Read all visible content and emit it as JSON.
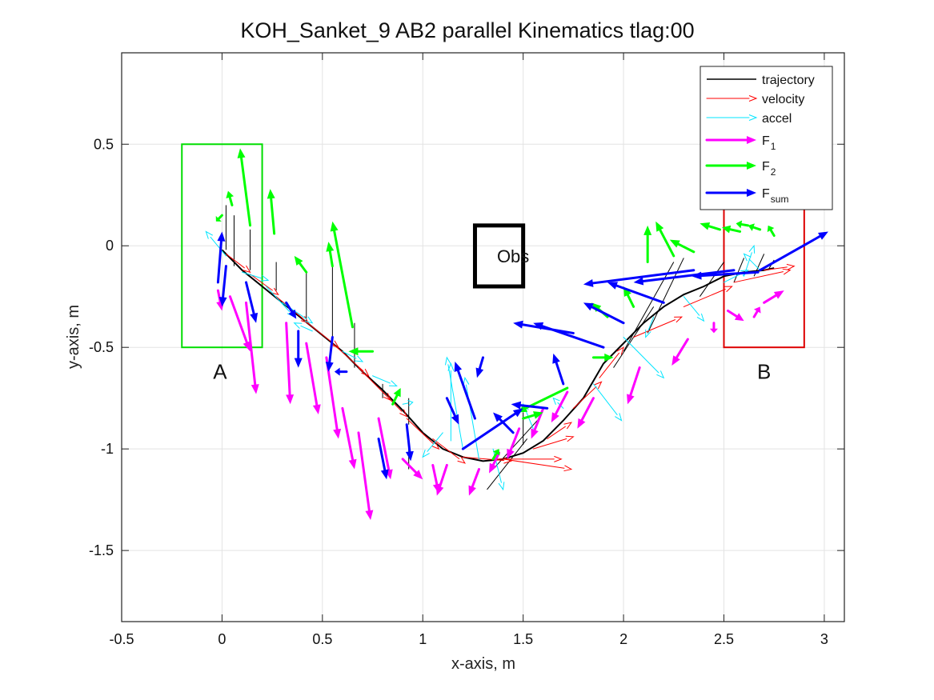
{
  "chart_data": {
    "type": "quiver",
    "title": "KOH_Sanket_9    AB2    parallel    Kinematics tlag:00",
    "xlabel": "x-axis, m",
    "ylabel": "y-axis, m",
    "xlim": [
      -0.5,
      3.1
    ],
    "ylim": [
      -1.85,
      0.95
    ],
    "xticks": [
      -0.5,
      0,
      0.5,
      1,
      1.5,
      2,
      2.5,
      3
    ],
    "xtick_labels": [
      "-0.5",
      "0",
      "0.5",
      "1",
      "1.5",
      "2",
      "2.5",
      "3"
    ],
    "yticks": [
      -1.5,
      -1,
      -0.5,
      0,
      0.5
    ],
    "ytick_labels": [
      "-1.5",
      "-1",
      "-0.5",
      "0",
      "0.5"
    ],
    "grid": true,
    "legend_position": "top-right",
    "legend": [
      {
        "key": "trajectory",
        "label": "trajectory",
        "sub": "",
        "color": "#000000"
      },
      {
        "key": "velocity",
        "label": "velocity",
        "sub": "",
        "color": "#ff0000"
      },
      {
        "key": "accel",
        "label": "accel",
        "sub": "",
        "color": "#00e5ff"
      },
      {
        "key": "f1",
        "label": "F",
        "sub": "1",
        "color": "#ff00ff"
      },
      {
        "key": "f2",
        "label": "F",
        "sub": "2",
        "color": "#00ff00"
      },
      {
        "key": "fsum",
        "label": "F",
        "sub": "sum",
        "color": "#0000ff"
      }
    ],
    "regions": [
      {
        "label": "A",
        "color": "#00dd00",
        "x": [
          -0.2,
          0.2
        ],
        "y": [
          -0.5,
          0.5
        ],
        "label_at": [
          -0.01,
          -0.62
        ]
      },
      {
        "label": "B",
        "color": "#dd0000",
        "x": [
          2.5,
          2.9
        ],
        "y": [
          -0.5,
          0.3
        ],
        "label_at": [
          2.7,
          -0.62
        ]
      }
    ],
    "obstacle": {
      "label": "Obs",
      "color": "#000000",
      "x": [
        1.26,
        1.5
      ],
      "y": [
        -0.2,
        0.1
      ],
      "label_at": [
        1.45,
        -0.05
      ]
    },
    "trajectory": [
      [
        0.0,
        -0.02
      ],
      [
        0.1,
        -0.12
      ],
      [
        0.2,
        -0.2
      ],
      [
        0.3,
        -0.28
      ],
      [
        0.4,
        -0.36
      ],
      [
        0.5,
        -0.44
      ],
      [
        0.6,
        -0.52
      ],
      [
        0.7,
        -0.62
      ],
      [
        0.8,
        -0.71
      ],
      [
        0.9,
        -0.81
      ],
      [
        1.0,
        -0.92
      ],
      [
        1.1,
        -1.0
      ],
      [
        1.2,
        -1.04
      ],
      [
        1.3,
        -1.06
      ],
      [
        1.4,
        -1.05
      ],
      [
        1.5,
        -1.02
      ],
      [
        1.6,
        -0.96
      ],
      [
        1.7,
        -0.86
      ],
      [
        1.8,
        -0.75
      ],
      [
        1.9,
        -0.58
      ],
      [
        2.0,
        -0.48
      ],
      [
        2.1,
        -0.38
      ],
      [
        2.2,
        -0.3
      ],
      [
        2.3,
        -0.24
      ],
      [
        2.4,
        -0.2
      ],
      [
        2.5,
        -0.15
      ],
      [
        2.6,
        -0.13
      ],
      [
        2.7,
        -0.12
      ],
      [
        2.75,
        -0.11
      ]
    ],
    "series": [
      {
        "name": "velocity",
        "color": "#ff0000",
        "width": 1,
        "vectors": [
          [
            0.02,
            -0.04,
            0.12,
            -0.09
          ],
          [
            0.14,
            -0.14,
            0.14,
            -0.1
          ],
          [
            0.27,
            -0.25,
            0.16,
            -0.13
          ],
          [
            0.4,
            -0.36,
            0.18,
            -0.14
          ],
          [
            0.55,
            -0.48,
            0.18,
            -0.16
          ],
          [
            0.68,
            -0.6,
            0.16,
            -0.16
          ],
          [
            0.8,
            -0.72,
            0.12,
            -0.12
          ],
          [
            0.92,
            -0.85,
            0.16,
            -0.15
          ],
          [
            1.05,
            -0.95,
            0.16,
            -0.12
          ],
          [
            1.2,
            -1.04,
            0.24,
            -0.02
          ],
          [
            1.35,
            -1.05,
            0.34,
            0.0
          ],
          [
            1.4,
            -1.05,
            0.34,
            -0.05
          ],
          [
            1.55,
            -1.0,
            0.2,
            0.06
          ],
          [
            1.62,
            -0.95,
            0.12,
            0.08
          ],
          [
            1.75,
            -0.8,
            0.14,
            0.13
          ],
          [
            1.88,
            -0.65,
            0.12,
            0.15
          ],
          [
            2.05,
            -0.45,
            0.24,
            0.1
          ],
          [
            2.3,
            -0.3,
            0.24,
            0.1
          ],
          [
            2.55,
            -0.18,
            0.28,
            0.06
          ],
          [
            2.7,
            -0.12,
            0.15,
            0.02
          ]
        ]
      },
      {
        "name": "accel",
        "color": "#00e5ff",
        "width": 1,
        "vectors": [
          [
            0.02,
            -0.05,
            -0.1,
            0.12
          ],
          [
            0.1,
            -0.13,
            0.13,
            -0.04
          ],
          [
            0.22,
            -0.2,
            0.14,
            -0.15
          ],
          [
            0.3,
            -0.28,
            0.15,
            -0.1
          ],
          [
            0.45,
            -0.42,
            -0.09,
            0.04
          ],
          [
            0.6,
            -0.52,
            0.1,
            -0.05
          ],
          [
            0.75,
            -0.64,
            0.12,
            -0.05
          ],
          [
            0.9,
            -0.78,
            0.05,
            0.01
          ],
          [
            1.1,
            -0.92,
            -0.1,
            -0.12
          ],
          [
            1.14,
            -0.96,
            0.0,
            0.38
          ],
          [
            1.2,
            -1.0,
            -0.08,
            0.45
          ],
          [
            1.28,
            -1.05,
            -0.07,
            0.4
          ],
          [
            1.35,
            -1.0,
            0.05,
            -0.2
          ],
          [
            1.55,
            -0.9,
            -0.05,
            0.12
          ],
          [
            1.7,
            -0.8,
            -0.05,
            0.05
          ],
          [
            1.85,
            -0.68,
            0.14,
            -0.18
          ],
          [
            2.0,
            -0.45,
            0.2,
            -0.2
          ],
          [
            2.15,
            -0.35,
            -0.04,
            -0.1
          ],
          [
            2.3,
            -0.25,
            0.1,
            -0.12
          ],
          [
            2.5,
            -0.18,
            0.12,
            0.06
          ],
          [
            2.6,
            -0.15,
            0.05,
            0.15
          ],
          [
            2.68,
            -0.12,
            -0.08,
            0.08
          ]
        ]
      },
      {
        "name": "F1",
        "color": "#ff00ff",
        "width": 3,
        "vectors": [
          [
            -0.02,
            -0.22,
            0.02,
            -0.1
          ],
          [
            0.04,
            -0.25,
            0.1,
            -0.27
          ],
          [
            0.12,
            -0.28,
            0.05,
            -0.45
          ],
          [
            0.32,
            -0.38,
            0.02,
            -0.4
          ],
          [
            0.42,
            -0.48,
            0.06,
            -0.35
          ],
          [
            0.52,
            -0.55,
            0.06,
            -0.4
          ],
          [
            0.6,
            -0.8,
            0.06,
            -0.3
          ],
          [
            0.68,
            -0.92,
            0.06,
            -0.43
          ],
          [
            0.78,
            -0.85,
            0.06,
            -0.3
          ],
          [
            0.9,
            -1.05,
            0.1,
            -0.1
          ],
          [
            1.05,
            -1.08,
            0.03,
            -0.14
          ],
          [
            1.12,
            -1.08,
            -0.05,
            -0.15
          ],
          [
            1.28,
            -1.1,
            -0.05,
            -0.13
          ],
          [
            1.38,
            -1.02,
            -0.05,
            -0.1
          ],
          [
            1.48,
            -0.9,
            -0.06,
            -0.15
          ],
          [
            1.6,
            -0.8,
            -0.06,
            -0.15
          ],
          [
            1.72,
            -0.72,
            -0.08,
            -0.15
          ],
          [
            1.85,
            -0.75,
            -0.08,
            -0.15
          ],
          [
            2.08,
            -0.6,
            -0.06,
            -0.18
          ],
          [
            2.32,
            -0.46,
            -0.08,
            -0.13
          ],
          [
            2.45,
            -0.38,
            0.0,
            -0.05
          ],
          [
            2.52,
            -0.32,
            0.08,
            -0.05
          ],
          [
            2.65,
            -0.35,
            0.03,
            0.05
          ],
          [
            2.7,
            -0.28,
            0.1,
            0.06
          ]
        ]
      },
      {
        "name": "F2",
        "color": "#00ff00",
        "width": 3,
        "vectors": [
          [
            0.0,
            0.15,
            -0.03,
            -0.03
          ],
          [
            0.05,
            0.2,
            -0.02,
            0.07
          ],
          [
            0.14,
            0.1,
            -0.05,
            0.38
          ],
          [
            0.26,
            0.06,
            -0.02,
            0.22
          ],
          [
            0.42,
            -0.13,
            -0.06,
            0.08
          ],
          [
            0.55,
            -0.1,
            -0.02,
            0.12
          ],
          [
            0.65,
            -0.4,
            -0.1,
            0.52
          ],
          [
            0.75,
            -0.52,
            -0.12,
            0.0
          ],
          [
            0.85,
            -0.78,
            0.04,
            0.08
          ],
          [
            1.35,
            -1.05,
            0.03,
            0.05
          ],
          [
            1.5,
            -0.85,
            0.1,
            0.03
          ],
          [
            1.72,
            -0.7,
            -0.25,
            -0.12
          ],
          [
            1.85,
            -0.55,
            0.1,
            0.0
          ],
          [
            1.92,
            -0.35,
            -0.08,
            0.07
          ],
          [
            2.05,
            -0.3,
            -0.05,
            0.1
          ],
          [
            2.12,
            -0.08,
            0.0,
            0.18
          ],
          [
            2.25,
            -0.05,
            -0.09,
            0.17
          ],
          [
            2.35,
            -0.03,
            -0.12,
            0.06
          ],
          [
            2.48,
            0.08,
            -0.1,
            0.03
          ],
          [
            2.58,
            0.07,
            -0.09,
            0.02
          ],
          [
            2.62,
            0.1,
            -0.06,
            0.01
          ],
          [
            2.68,
            0.08,
            -0.06,
            0.02
          ],
          [
            2.75,
            0.05,
            -0.03,
            0.05
          ]
        ]
      },
      {
        "name": "Fsum",
        "color": "#0000ff",
        "width": 3,
        "vectors": [
          [
            -0.02,
            -0.18,
            0.02,
            0.25
          ],
          [
            0.02,
            -0.1,
            -0.02,
            -0.2
          ],
          [
            0.12,
            -0.18,
            0.05,
            -0.2
          ],
          [
            0.32,
            -0.28,
            0.05,
            -0.08
          ],
          [
            0.38,
            -0.42,
            0.0,
            -0.18
          ],
          [
            0.55,
            -0.45,
            -0.02,
            -0.17
          ],
          [
            0.62,
            -0.62,
            -0.06,
            0.0
          ],
          [
            0.78,
            -0.95,
            0.04,
            -0.2
          ],
          [
            0.92,
            -0.88,
            0.02,
            -0.18
          ],
          [
            1.12,
            -0.75,
            0.06,
            -0.13
          ],
          [
            1.2,
            -1.0,
            0.3,
            0.2
          ],
          [
            1.26,
            -0.85,
            -0.1,
            0.28
          ],
          [
            1.3,
            -0.55,
            -0.03,
            -0.1
          ],
          [
            1.45,
            -0.92,
            -0.1,
            0.1
          ],
          [
            1.62,
            -0.8,
            -0.18,
            0.02
          ],
          [
            1.7,
            -0.68,
            -0.05,
            0.15
          ],
          [
            1.75,
            -0.43,
            -0.3,
            0.05
          ],
          [
            1.9,
            -0.5,
            -0.35,
            0.12
          ],
          [
            2.0,
            -0.38,
            -0.2,
            0.1
          ],
          [
            2.2,
            -0.28,
            -0.28,
            0.1
          ],
          [
            2.35,
            -0.12,
            -0.55,
            -0.07
          ],
          [
            2.55,
            -0.12,
            -0.5,
            -0.06
          ],
          [
            2.67,
            -0.13,
            -0.33,
            -0.02
          ],
          [
            2.68,
            -0.12,
            0.34,
            0.19
          ]
        ]
      }
    ],
    "short_segments": {
      "name": "trajectory",
      "color": "#000000",
      "segments": [
        [
          0.02,
          -0.02,
          0.02,
          0.2
        ],
        [
          0.06,
          -0.1,
          0.06,
          0.15
        ],
        [
          0.14,
          -0.12,
          0.14,
          0.08
        ],
        [
          0.27,
          -0.22,
          0.27,
          -0.08
        ],
        [
          0.42,
          -0.38,
          0.42,
          -0.13
        ],
        [
          0.55,
          -0.47,
          0.55,
          -0.1
        ],
        [
          0.66,
          -0.6,
          0.66,
          -0.38
        ],
        [
          0.8,
          -0.75,
          0.8,
          -0.68
        ],
        [
          0.93,
          -0.88,
          0.93,
          -0.75
        ],
        [
          0.93,
          -1.1,
          0.93,
          -0.95
        ],
        [
          1.32,
          -1.2,
          1.52,
          -0.95
        ],
        [
          1.35,
          -1.1,
          1.58,
          -0.85
        ],
        [
          1.5,
          -0.98,
          1.5,
          -0.82
        ],
        [
          1.95,
          -0.6,
          2.15,
          -0.3
        ],
        [
          2.0,
          -0.52,
          2.25,
          -0.08
        ],
        [
          2.12,
          -0.43,
          2.3,
          -0.06
        ],
        [
          2.38,
          -0.25,
          2.5,
          -0.08
        ],
        [
          2.55,
          -0.18,
          2.6,
          -0.06
        ],
        [
          2.65,
          -0.15,
          2.7,
          -0.04
        ],
        [
          2.72,
          -0.12,
          2.75,
          -0.07
        ]
      ]
    }
  }
}
